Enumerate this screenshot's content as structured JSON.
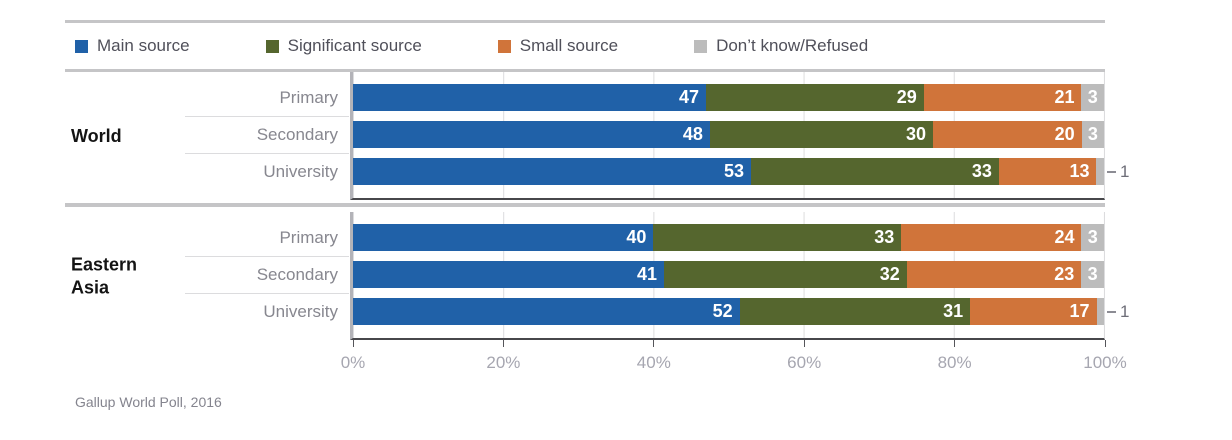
{
  "legend": [
    {
      "label": "Main source",
      "color": "#2061a8",
      "icon": "swatch-blue"
    },
    {
      "label": "Significant source",
      "color": "#55662e",
      "icon": "swatch-olive"
    },
    {
      "label": "Small source",
      "color": "#d0743a",
      "icon": "swatch-orange"
    },
    {
      "label": "Don’t know/Refused",
      "color": "#bcbcbc",
      "icon": "swatch-gray"
    }
  ],
  "chart_data": {
    "type": "bar",
    "orientation": "horizontal",
    "stacked": true,
    "unit": "percent",
    "xlim": [
      0,
      100
    ],
    "x_tick_labels": [
      "0%",
      "20%",
      "40%",
      "60%",
      "80%",
      "100%"
    ],
    "x_tick_values": [
      0,
      20,
      40,
      60,
      80,
      100
    ],
    "grid": "vertical-light-gray",
    "legend_position": "top",
    "series_names": [
      "Main source",
      "Significant source",
      "Small source",
      "Don’t know/Refused"
    ],
    "series_colors": [
      "#2061a8",
      "#55662e",
      "#d0743a",
      "#bcbcbc"
    ],
    "groups": [
      {
        "name": "World",
        "rows": [
          {
            "label": "Primary",
            "values": [
              47,
              29,
              21,
              3
            ]
          },
          {
            "label": "Secondary",
            "values": [
              48,
              30,
              20,
              3
            ]
          },
          {
            "label": "University",
            "values": [
              53,
              33,
              13,
              1
            ]
          }
        ]
      },
      {
        "name": "Eastern Asia",
        "rows": [
          {
            "label": "Primary",
            "values": [
              40,
              33,
              24,
              3
            ]
          },
          {
            "label": "Secondary",
            "values": [
              41,
              32,
              23,
              3
            ]
          },
          {
            "label": "University",
            "values": [
              52,
              31,
              17,
              1
            ]
          }
        ]
      }
    ],
    "label_rules": {
      "outside_if_value_at_most": 1,
      "centered_if_value_at_most": 4
    }
  },
  "footer": {
    "source": "Gallup World Poll, 2016"
  },
  "colors": {
    "value_label": "#ffffff",
    "outside_label": "#6e6e78",
    "axis_line": "#47474b",
    "zero_axis_line": "#b3b3b8",
    "gridline": "#dcdcde",
    "rule": "#c5c5c7",
    "row_label": "#87878f",
    "group_label": "#141414",
    "tick_label": "#a6a6b0",
    "footer_text": "#84848e"
  }
}
